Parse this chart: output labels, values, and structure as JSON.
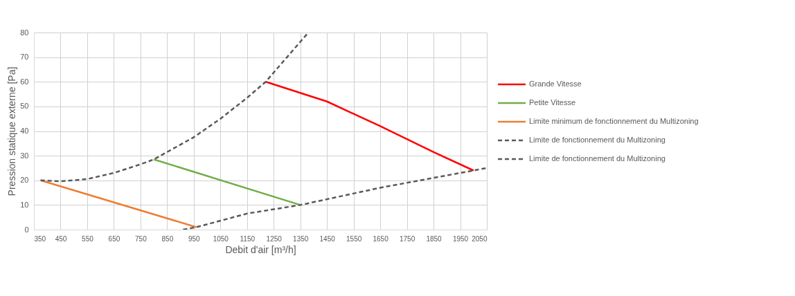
{
  "chart_data": {
    "type": "line",
    "xlabel": "Debit d'air [m³/h]",
    "ylabel": "Pression statique externe [Pa]",
    "xlim": [
      350,
      2050
    ],
    "xticks": [
      350,
      450,
      550,
      650,
      750,
      850,
      950,
      1050,
      1150,
      1250,
      1350,
      1450,
      1550,
      1650,
      1750,
      1850,
      1950,
      2050
    ],
    "ylim": [
      0,
      80
    ],
    "yticks": [
      0,
      10,
      20,
      30,
      40,
      50,
      60,
      70,
      80
    ],
    "grid": true,
    "legend": "right",
    "marker": "none",
    "series": [
      {
        "name": "Grande Vitesse",
        "color": "#ff0000",
        "line_style": "solid",
        "x": [
          1220,
          1450,
          1650,
          1850,
          2000
        ],
        "values": [
          60,
          52,
          42,
          31.5,
          24
        ]
      },
      {
        "name": "Petite Vitesse",
        "color": "#70ad47",
        "line_style": "solid",
        "x": [
          800,
          1350
        ],
        "values": [
          28.5,
          10
        ]
      },
      {
        "name": "Limite minimum de fonctionnement du Multizoning",
        "color": "#ed7d31",
        "line_style": "solid",
        "x": [
          375,
          960
        ],
        "values": [
          20,
          1
        ]
      },
      {
        "name": "Limite de fonctionnement du Multizoning",
        "color": "#595959",
        "line_style": "dashed",
        "x": [
          375,
          450,
          550,
          650,
          750,
          800,
          950,
          1050,
          1150,
          1220,
          1300,
          1380
        ],
        "values": [
          20,
          19.6,
          20.5,
          23,
          26.5,
          28.5,
          37.5,
          45,
          53.5,
          60,
          70,
          80
        ]
      },
      {
        "name": "Limite de fonctionnement du Multizoning",
        "color": "#595959",
        "line_style": "dashed",
        "x": [
          910,
          960,
          1150,
          1350,
          1650,
          2000,
          2050
        ],
        "values": [
          0,
          1,
          6.5,
          10,
          17,
          24,
          25
        ]
      }
    ]
  }
}
